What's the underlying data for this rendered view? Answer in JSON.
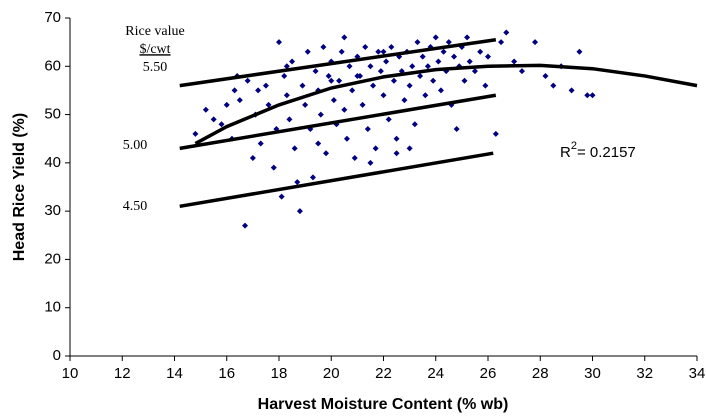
{
  "chart_data": {
    "type": "scatter",
    "xlabel": "Harvest Moisture Content (% wb)",
    "ylabel": "Head Rice Yield (%)",
    "xlim": [
      10,
      34
    ],
    "xticks": [
      10,
      12,
      14,
      16,
      18,
      20,
      22,
      24,
      26,
      28,
      30,
      32,
      34
    ],
    "ylim": [
      0,
      70
    ],
    "yticks": [
      0,
      10,
      20,
      30,
      40,
      50,
      60,
      70
    ],
    "grid": false,
    "annotations": [
      "Rice value",
      "$/cwt",
      "5.50",
      "5.00",
      "4.50"
    ],
    "r2": {
      "prefix": "R",
      "sup": "2",
      "text": "= 0.2157"
    },
    "series": [
      {
        "type": "scatter",
        "color": "#000080",
        "x": [
          14.8,
          15.2,
          15.5,
          15.8,
          16.0,
          16.2,
          16.3,
          16.5,
          16.7,
          16.8,
          17.0,
          17.1,
          17.3,
          17.5,
          17.6,
          17.8,
          17.9,
          18.0,
          18.1,
          18.2,
          18.3,
          18.4,
          18.5,
          18.6,
          18.7,
          18.8,
          18.9,
          19.0,
          19.1,
          19.2,
          19.3,
          19.4,
          19.5,
          19.6,
          19.7,
          19.8,
          19.9,
          20.0,
          20.1,
          20.2,
          20.3,
          20.4,
          20.5,
          20.6,
          20.7,
          20.8,
          20.9,
          21.0,
          21.1,
          21.2,
          21.3,
          21.4,
          21.5,
          21.6,
          21.7,
          21.8,
          21.9,
          22.0,
          22.1,
          22.2,
          22.3,
          22.4,
          22.5,
          22.6,
          22.7,
          22.8,
          22.9,
          23.0,
          23.1,
          23.2,
          23.3,
          23.4,
          23.5,
          23.6,
          23.7,
          23.8,
          23.9,
          24.0,
          24.1,
          24.2,
          24.3,
          24.4,
          24.5,
          24.6,
          24.7,
          24.8,
          24.9,
          25.0,
          25.1,
          25.2,
          25.3,
          25.5,
          25.7,
          25.9,
          26.0,
          26.3,
          26.5,
          26.7,
          27.0,
          27.3,
          27.8,
          28.2,
          28.5,
          28.8,
          29.2,
          29.5,
          29.8,
          30.0,
          19.5,
          20.5,
          21.5,
          22.5,
          18.3,
          17.2,
          16.4,
          23.0,
          21.0,
          22.0,
          20.0
        ],
        "values": [
          46,
          51,
          49,
          48,
          52,
          45,
          55,
          53,
          27,
          57,
          41,
          50,
          44,
          56,
          52,
          39,
          47,
          65,
          33,
          58,
          54,
          49,
          61,
          43,
          36,
          30,
          56,
          52,
          63,
          47,
          37,
          59,
          55,
          50,
          64,
          42,
          58,
          61,
          53,
          48,
          57,
          63,
          51,
          45,
          60,
          55,
          41,
          62,
          58,
          52,
          64,
          47,
          60,
          56,
          43,
          63,
          59,
          54,
          61,
          49,
          64,
          57,
          45,
          62,
          59,
          53,
          63,
          56,
          60,
          48,
          65,
          58,
          62,
          54,
          60,
          64,
          57,
          66,
          61,
          55,
          63,
          59,
          65,
          52,
          62,
          47,
          60,
          64,
          57,
          66,
          61,
          59,
          63,
          56,
          62,
          46,
          65,
          67,
          61,
          59,
          65,
          58,
          56,
          60,
          55,
          63,
          54,
          54,
          44,
          66,
          40,
          42,
          60,
          55,
          58,
          43,
          58,
          63,
          57
        ]
      },
      {
        "type": "line",
        "color": "#000000",
        "x": [
          14.2,
          26.3
        ],
        "values": [
          56,
          65.5
        ]
      },
      {
        "type": "line",
        "color": "#000000",
        "x": [
          14.2,
          26.3
        ],
        "values": [
          43,
          54
        ]
      },
      {
        "type": "line",
        "color": "#000000",
        "x": [
          14.2,
          26.2
        ],
        "values": [
          31,
          42
        ]
      },
      {
        "type": "line",
        "color": "#000000",
        "x": [
          14.8,
          16,
          18,
          20,
          22,
          24,
          26,
          28,
          30,
          32,
          34
        ],
        "values": [
          44,
          47.5,
          52,
          55.5,
          57.8,
          59.3,
          60,
          60.2,
          59.5,
          58,
          56
        ]
      }
    ]
  }
}
